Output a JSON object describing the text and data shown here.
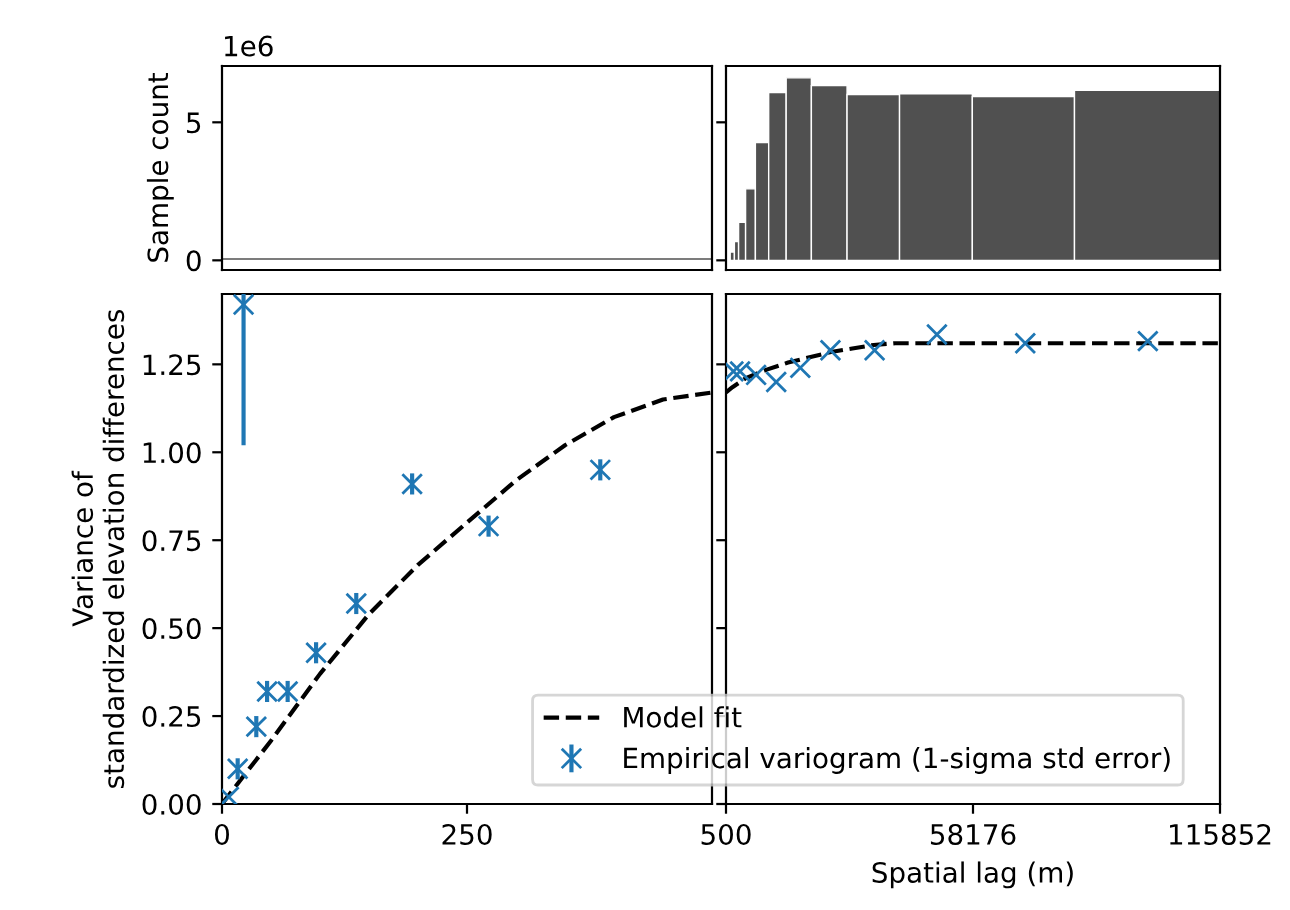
{
  "chart_data": [
    {
      "type": "histogram",
      "color": "#505050",
      "bins": [
        0,
        500
      ],
      "values": [
        0.1
      ],
      "ylabel": "Sample count",
      "xlim": [
        0,
        500
      ],
      "ylim": [
        -0.35,
        7.04
      ],
      "yticks": [
        0,
        5
      ],
      "tick_labels": "y",
      "annotations": [
        "1e6"
      ]
    },
    {
      "type": "histogram",
      "color": "#505050",
      "bins": [
        1480,
        2461,
        3441,
        5075,
        7363,
        10467,
        14552,
        20435,
        28768,
        41023,
        58017,
        81873,
        115852
      ],
      "values": [
        0.3,
        0.68,
        1.38,
        2.59,
        4.27,
        6.08,
        6.61,
        6.33,
        6.01,
        6.03,
        5.93,
        6.16
      ],
      "xlim": [
        500,
        115852
      ],
      "ylim": [
        -0.35,
        7.04
      ],
      "yticks": [
        0,
        5
      ],
      "tick_labels": false
    },
    {
      "type": "scatter",
      "ylabel": "Variance of\nstandardized elevation differences",
      "xlim": [
        0,
        500
      ],
      "ylim": [
        0,
        1.45
      ],
      "xticks": [
        0,
        250
      ],
      "yticks": [
        {
          "value": 0,
          "label": "0.00"
        },
        {
          "value": 0.25,
          "label": "0.25"
        },
        {
          "value": 0.5,
          "label": "0.50"
        },
        {
          "value": 0.75,
          "label": "0.75"
        },
        {
          "value": 1.0,
          "label": "1.00"
        },
        {
          "value": 1.25,
          "label": "1.25"
        }
      ],
      "legend": "bottom right",
      "grid": false,
      "series": [
        {
          "name": "Model fit",
          "type": "line",
          "line_style": "dashed",
          "color": "#000000",
          "x": [
            0,
            50,
            100,
            150,
            200,
            250,
            300,
            350,
            400,
            450,
            500
          ],
          "values": [
            0,
            0.18,
            0.37,
            0.54,
            0.68,
            0.8,
            0.92,
            1.02,
            1.1,
            1.15,
            1.17
          ]
        },
        {
          "name": "Empirical variogram (1-sigma std error)",
          "marker": "cross",
          "color": "#1f77b4",
          "x": [
            7,
            16,
            22,
            35,
            46,
            67,
            96,
            137,
            194,
            272,
            386
          ],
          "values": [
            0.02,
            0.1,
            1.42,
            0.22,
            0.32,
            0.32,
            0.43,
            0.57,
            0.91,
            0.79,
            0.95
          ],
          "errors": [
            null,
            0.03,
            [
              1.02,
              1.45
            ],
            0.03,
            0.03,
            0.03,
            0.03,
            0.03,
            0.03,
            0.03,
            0.03
          ]
        }
      ]
    },
    {
      "type": "scatter",
      "xlabel": "Spatial lag (m)",
      "xlim": [
        500,
        115852
      ],
      "ylim": [
        0,
        1.45
      ],
      "xticks": [
        500,
        58176,
        115852
      ],
      "yticks": [
        {
          "value": 0,
          "label": null
        },
        {
          "value": 0.25,
          "label": null
        },
        {
          "value": 0.5,
          "label": null
        },
        {
          "value": 0.75,
          "label": null
        },
        {
          "value": 1.0,
          "label": null
        },
        {
          "value": 1.25,
          "label": null
        }
      ],
      "tick_labels": "x",
      "grid": false,
      "series": [
        {
          "type": "line",
          "line_style": "dashed",
          "color": "#000000",
          "x": [
            500,
            2000,
            5000,
            10000,
            15000,
            20000,
            25000,
            30000,
            35000,
            40000,
            115852
          ],
          "values": [
            1.17,
            1.185,
            1.21,
            1.235,
            1.255,
            1.27,
            1.285,
            1.295,
            1.305,
            1.31,
            1.31
          ]
        },
        {
          "marker": "cross",
          "color": "#1f77b4",
          "x": [
            2235,
            3780,
            7535,
            12225,
            17850,
            24890,
            35200,
            49750,
            70380,
            99000
          ],
          "values": [
            1.23,
            1.23,
            1.22,
            1.2,
            1.24,
            1.29,
            1.29,
            1.335,
            1.31,
            1.316
          ]
        }
      ]
    }
  ]
}
